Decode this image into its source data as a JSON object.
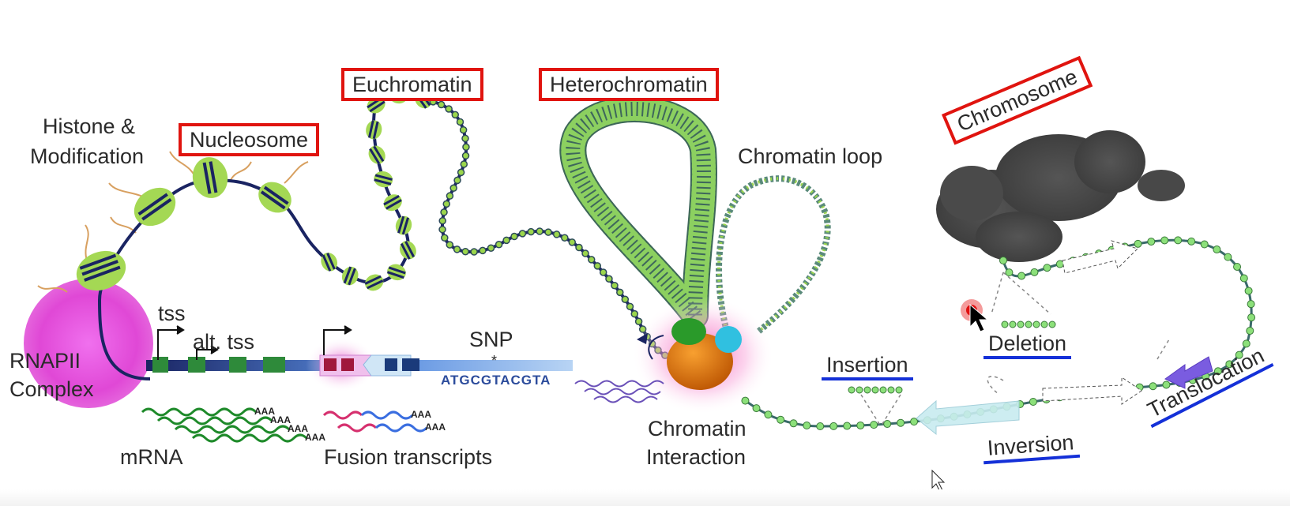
{
  "labels": {
    "histone": "Histone &",
    "modification": "Modification",
    "nucleosome": "Nucleosome",
    "euchromatin": "Euchromatin",
    "heterochromatin": "Heterochromatin",
    "chromosome": "Chromosome",
    "chromatin_loop": "Chromatin loop",
    "tss": "tss",
    "alt_tss": "alt. tss",
    "snp": "SNP",
    "snp_star": "*",
    "sequence": "ATGCGTACGTA",
    "rnapii_line1": "RNAPII",
    "rnapii_line2": "Complex",
    "mrna": "mRNA",
    "fusion": "Fusion transcripts",
    "chromatin_interaction_line1": "Chromatin",
    "chromatin_interaction_line2": "Interaction",
    "insertion": "Insertion",
    "deletion": "Deletion",
    "inversion": "Inversion",
    "translocation": "Translocation",
    "polya": "AAA"
  },
  "colors": {
    "red_box": "#e0140f",
    "blue_underline": "#1430d8",
    "dna_navy": "#1a2462",
    "nucleosome_green": "#9bd64c",
    "rnapii_magenta": "#e04ad8",
    "mrna_green": "#1e8a2a",
    "fusion_magenta": "#d6306e",
    "fusion_blue": "#3a6ee0",
    "anchor_orange": "#e07a10",
    "anchor_green": "#2a9a2a",
    "anchor_cyan": "#30c0e0",
    "sv_bead": "#8ce07a",
    "translocation_purple": "#7a5ce0"
  },
  "icons": {
    "cursor": "mouse-cursor-icon",
    "click_indicator": "click-indicator-icon",
    "tss_arrow": "tss-arrow-icon"
  }
}
